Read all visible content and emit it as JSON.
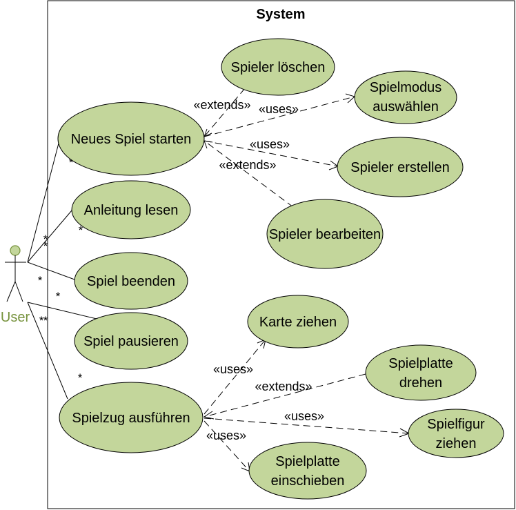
{
  "system": {
    "title": "System"
  },
  "actor": {
    "name": "User",
    "color": "#76923c"
  },
  "colors": {
    "usecase_fill": "#c3d69b",
    "line": "#000000"
  },
  "use_cases": {
    "neues_spiel_starten": "Neues Spiel starten",
    "anleitung_lesen": "Anleitung lesen",
    "spiel_beenden": "Spiel beenden",
    "spiel_pausieren": "Spiel pausieren",
    "spielzug_ausfuehren": "Spielzug ausführen",
    "spieler_loeschen": "Spieler löschen",
    "spielmodus_auswaehlen": [
      "Spielmodus",
      "auswählen"
    ],
    "spieler_erstellen": "Spieler erstellen",
    "spieler_bearbeiten": "Spieler bearbeiten",
    "karte_ziehen": "Karte ziehen",
    "spielplatte_drehen": [
      "Spielplatte",
      "drehen"
    ],
    "spielfigur_ziehen": [
      "Spielfigur",
      "ziehen"
    ],
    "spielplatte_einschieben": [
      "Spielplatte",
      "einschieben"
    ]
  },
  "relations": {
    "extends": "«extends»",
    "uses": "«uses»"
  },
  "multiplicity": "*"
}
